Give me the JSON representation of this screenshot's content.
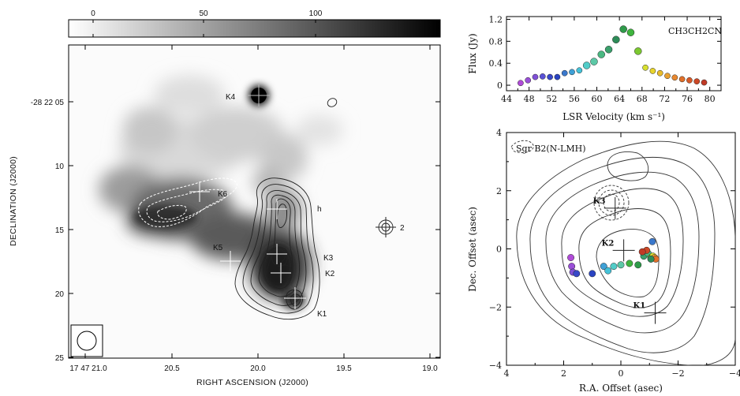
{
  "left_map": {
    "colorbar_ticks": [
      "0",
      "50",
      "100"
    ],
    "dec_ticks": [
      "-28 22 05",
      "10",
      "15",
      "20",
      "25"
    ],
    "ra_ticks": [
      "17 47 21.0",
      "20.5",
      "20.0",
      "19.5",
      "19.0"
    ],
    "xlabel": "RIGHT ASCENSION (J2000)",
    "ylabel": "DECLINATION (J2000)",
    "sources": [
      "K4",
      "K6",
      "h",
      "2",
      "K5",
      "K3",
      "K2",
      "K1"
    ]
  },
  "chart_data": [
    {
      "type": "scatter",
      "annotation": "CH3CH2CN",
      "xlabel": "LSR Velocity (km s⁻¹)",
      "ylabel": "Flux (Jy)",
      "xlim": [
        44,
        82
      ],
      "ylim": [
        -0.1,
        1.25
      ],
      "xticks": [
        "44",
        "48",
        "52",
        "56",
        "60",
        "64",
        "68",
        "72",
        "76",
        "80"
      ],
      "yticks": [
        "0",
        "0.4",
        "0.8",
        "1.2"
      ],
      "x": [
        46.5,
        47.8,
        49.1,
        50.4,
        51.7,
        53.0,
        54.3,
        55.6,
        56.9,
        58.2,
        59.5,
        60.8,
        62.1,
        63.4,
        64.7,
        66.0,
        67.3,
        68.6,
        69.9,
        71.2,
        72.5,
        73.8,
        75.1,
        76.4,
        77.7,
        79.0
      ],
      "y": [
        0.04,
        0.09,
        0.15,
        0.16,
        0.15,
        0.15,
        0.22,
        0.24,
        0.27,
        0.36,
        0.43,
        0.56,
        0.65,
        0.83,
        1.02,
        0.96,
        0.62,
        0.32,
        0.26,
        0.22,
        0.17,
        0.14,
        0.11,
        0.09,
        0.07,
        0.05
      ],
      "colors": [
        "#b04bd8",
        "#9a4fd8",
        "#8050d8",
        "#5a52d6",
        "#3848c8",
        "#2a44c2",
        "#3a78cc",
        "#3fa0d6",
        "#45c2d8",
        "#52ccc8",
        "#5cc8a6",
        "#4ab882",
        "#3aa06c",
        "#2d8c58",
        "#2f9a4a",
        "#3fb43e",
        "#7cc830",
        "#d8e030",
        "#e8d42c",
        "#e8bc2c",
        "#e8a030",
        "#e88830",
        "#e0702a",
        "#d85a28",
        "#cc4826",
        "#c03a26"
      ]
    },
    {
      "type": "scatter",
      "annotation": "Sgr B2(N-LMH)",
      "xlabel": "R.A. Offset (asec)",
      "ylabel": "Dec. Offset (asec)",
      "xlim": [
        4,
        -4
      ],
      "ylim": [
        -4,
        4
      ],
      "xticks": [
        "4",
        "2",
        "0",
        "−2",
        "−4"
      ],
      "yticks": [
        "4",
        "2",
        "0",
        "−2",
        "−4"
      ],
      "markers": [
        {
          "label": "K3",
          "x": 0.2,
          "y": 1.4
        },
        {
          "label": "K2",
          "x": -0.1,
          "y": -0.05
        },
        {
          "label": "K1",
          "x": -1.2,
          "y": -2.2
        }
      ],
      "x": [
        1.75,
        1.72,
        1.68,
        1.55,
        1.0,
        0.6,
        0.45,
        0.25,
        0.0,
        -0.3,
        -0.6,
        -0.8,
        -0.95,
        -1.05,
        -1.12,
        -1.18,
        -1.22,
        -1.1,
        -0.9,
        -0.75,
        -1.05
      ],
      "y": [
        -0.3,
        -0.6,
        -0.8,
        -0.85,
        -0.85,
        -0.6,
        -0.75,
        -0.6,
        -0.55,
        -0.5,
        -0.55,
        -0.25,
        -0.15,
        -0.3,
        -0.25,
        -0.3,
        -0.35,
        0.25,
        -0.05,
        -0.1,
        -0.35
      ],
      "colors": [
        "#b04bd8",
        "#9a4fd8",
        "#8050d8",
        "#3848c8",
        "#2a44c2",
        "#3fa0d6",
        "#45c2d8",
        "#52ccc8",
        "#5cc8a6",
        "#3fb43e",
        "#2f9a4a",
        "#3aa06c",
        "#4ab882",
        "#7cc830",
        "#d8e030",
        "#e8a030",
        "#e0702a",
        "#3a78cc",
        "#cc4826",
        "#c03a26",
        "#2d8c58"
      ]
    }
  ]
}
